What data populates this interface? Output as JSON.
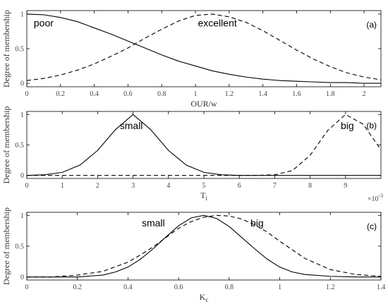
{
  "chart_data": [
    {
      "type": "line",
      "panel_tag": "(a)",
      "xlabel": "OUR/w",
      "xlabel_sub": "",
      "ylabel": "Degree of membership",
      "xlim": [
        0,
        2.1
      ],
      "ylim": [
        -0.05,
        1.05
      ],
      "xticks": [
        0,
        0.2,
        0.4,
        0.6,
        0.8,
        1,
        1.2,
        1.4,
        1.6,
        1.8,
        2
      ],
      "xtick_labels": [
        "0",
        "0.2",
        "0.4",
        "0.6",
        "0.8",
        "1",
        "1.2",
        "1.4",
        "1.6",
        "1.8",
        "2"
      ],
      "yticks": [
        0,
        0.5,
        1
      ],
      "ytick_labels": [
        "0",
        "0.5",
        "1"
      ],
      "x_multiplier": "",
      "x_multiplier_exp": "",
      "series": [
        {
          "name": "poor",
          "style": "solid",
          "x": [
            0,
            0.1,
            0.2,
            0.3,
            0.4,
            0.5,
            0.6,
            0.7,
            0.8,
            0.9,
            1.0,
            1.1,
            1.2,
            1.3,
            1.4,
            1.5,
            1.6,
            1.7,
            1.8,
            1.9,
            2.0,
            2.1
          ],
          "values": [
            1.0,
            0.99,
            0.95,
            0.89,
            0.8,
            0.71,
            0.61,
            0.51,
            0.41,
            0.32,
            0.25,
            0.18,
            0.13,
            0.09,
            0.06,
            0.04,
            0.03,
            0.02,
            0.01,
            0.01,
            0.0,
            0.0
          ]
        },
        {
          "name": "excellent",
          "style": "dashed",
          "x": [
            0,
            0.1,
            0.2,
            0.3,
            0.4,
            0.5,
            0.6,
            0.7,
            0.8,
            0.9,
            1.0,
            1.1,
            1.2,
            1.3,
            1.4,
            1.5,
            1.6,
            1.7,
            1.8,
            1.9,
            2.0,
            2.1
          ],
          "values": [
            0.04,
            0.07,
            0.12,
            0.19,
            0.28,
            0.39,
            0.51,
            0.65,
            0.78,
            0.9,
            0.98,
            1.0,
            0.96,
            0.88,
            0.76,
            0.62,
            0.48,
            0.35,
            0.24,
            0.15,
            0.09,
            0.05
          ]
        }
      ],
      "annotations": [
        {
          "text": "poor",
          "x": 0.1,
          "y": 0.82
        },
        {
          "text": "excellent",
          "x": 1.13,
          "y": 0.82
        }
      ]
    },
    {
      "type": "line",
      "panel_tag": "(b)",
      "xlabel": "T",
      "xlabel_sub": "i",
      "ylabel": "Degree of membership",
      "xlim": [
        0,
        10
      ],
      "ylim": [
        -0.05,
        1.05
      ],
      "xticks": [
        0,
        1,
        2,
        3,
        4,
        5,
        6,
        7,
        8,
        9
      ],
      "xtick_labels": [
        "0",
        "1",
        "2",
        "3",
        "4",
        "5",
        "6",
        "7",
        "8",
        "9"
      ],
      "yticks": [
        0,
        0.5,
        1
      ],
      "ytick_labels": [
        "0",
        "0.5",
        "1"
      ],
      "x_multiplier": "×10",
      "x_multiplier_exp": "-3",
      "series": [
        {
          "name": "small",
          "style": "solid",
          "x": [
            0,
            0.5,
            1.0,
            1.5,
            2.0,
            2.5,
            3.0,
            3.5,
            4.0,
            4.5,
            5.0,
            5.5,
            6.0,
            6.5,
            7.0,
            7.5,
            8.0,
            8.5,
            9.0,
            9.5,
            10.0
          ],
          "values": [
            0.0,
            0.01,
            0.05,
            0.17,
            0.41,
            0.75,
            1.0,
            0.75,
            0.41,
            0.17,
            0.05,
            0.01,
            0.0,
            0.0,
            0.0,
            0.0,
            0.0,
            0.0,
            0.0,
            0.0,
            0.0
          ]
        },
        {
          "name": "big",
          "style": "dashed",
          "x": [
            0,
            0.5,
            1.0,
            1.5,
            2.0,
            2.5,
            3.0,
            3.5,
            4.0,
            4.5,
            5.0,
            5.5,
            6.0,
            6.5,
            7.0,
            7.5,
            8.0,
            8.5,
            9.0,
            9.5,
            10.0
          ],
          "values": [
            0.0,
            0.0,
            0.0,
            0.0,
            0.0,
            0.0,
            0.0,
            0.0,
            0.0,
            0.0,
            0.0,
            0.0,
            0.0,
            0.0,
            0.01,
            0.08,
            0.33,
            0.74,
            1.0,
            0.84,
            0.42
          ]
        }
      ],
      "annotations": [
        {
          "text": "small",
          "x": 2.95,
          "y": 0.76
        },
        {
          "text": "big",
          "x": 9.05,
          "y": 0.76
        }
      ]
    },
    {
      "type": "line",
      "panel_tag": "(c)",
      "xlabel": "K",
      "xlabel_sub": "c",
      "ylabel": "Degree of membership",
      "xlim": [
        0,
        1.4
      ],
      "ylim": [
        -0.05,
        1.05
      ],
      "xticks": [
        0,
        0.2,
        0.4,
        0.6,
        0.8,
        1,
        1.2,
        1.4
      ],
      "xtick_labels": [
        "0",
        "0.2",
        "0.4",
        "0.6",
        "0.8",
        "1",
        "1.2",
        "1.4"
      ],
      "yticks": [
        0,
        0.5,
        1
      ],
      "ytick_labels": [
        "0",
        "0.5",
        "1"
      ],
      "x_multiplier": "",
      "x_multiplier_exp": "",
      "series": [
        {
          "name": "small",
          "style": "solid",
          "x": [
            0,
            0.1,
            0.2,
            0.3,
            0.35,
            0.4,
            0.45,
            0.5,
            0.55,
            0.6,
            0.65,
            0.7,
            0.75,
            0.8,
            0.85,
            0.9,
            0.95,
            1.0,
            1.05,
            1.1,
            1.2,
            1.3,
            1.4
          ],
          "values": [
            0.0,
            0.0,
            0.0,
            0.03,
            0.08,
            0.16,
            0.29,
            0.46,
            0.65,
            0.83,
            0.96,
            1.0,
            0.95,
            0.82,
            0.64,
            0.46,
            0.29,
            0.16,
            0.08,
            0.04,
            0.01,
            0.0,
            0.0
          ]
        },
        {
          "name": "big",
          "style": "dashed",
          "x": [
            0,
            0.1,
            0.2,
            0.3,
            0.4,
            0.45,
            0.5,
            0.55,
            0.6,
            0.65,
            0.7,
            0.75,
            0.8,
            0.85,
            0.9,
            0.95,
            1.0,
            1.05,
            1.1,
            1.2,
            1.3,
            1.4
          ],
          "values": [
            0.0,
            0.0,
            0.03,
            0.09,
            0.24,
            0.36,
            0.49,
            0.64,
            0.79,
            0.9,
            0.97,
            1.0,
            0.99,
            0.94,
            0.85,
            0.73,
            0.58,
            0.44,
            0.3,
            0.12,
            0.04,
            0.01
          ]
        }
      ],
      "annotations": [
        {
          "text": "small",
          "x": 0.5,
          "y": 0.82
        },
        {
          "text": "big",
          "x": 0.91,
          "y": 0.82
        }
      ]
    }
  ]
}
